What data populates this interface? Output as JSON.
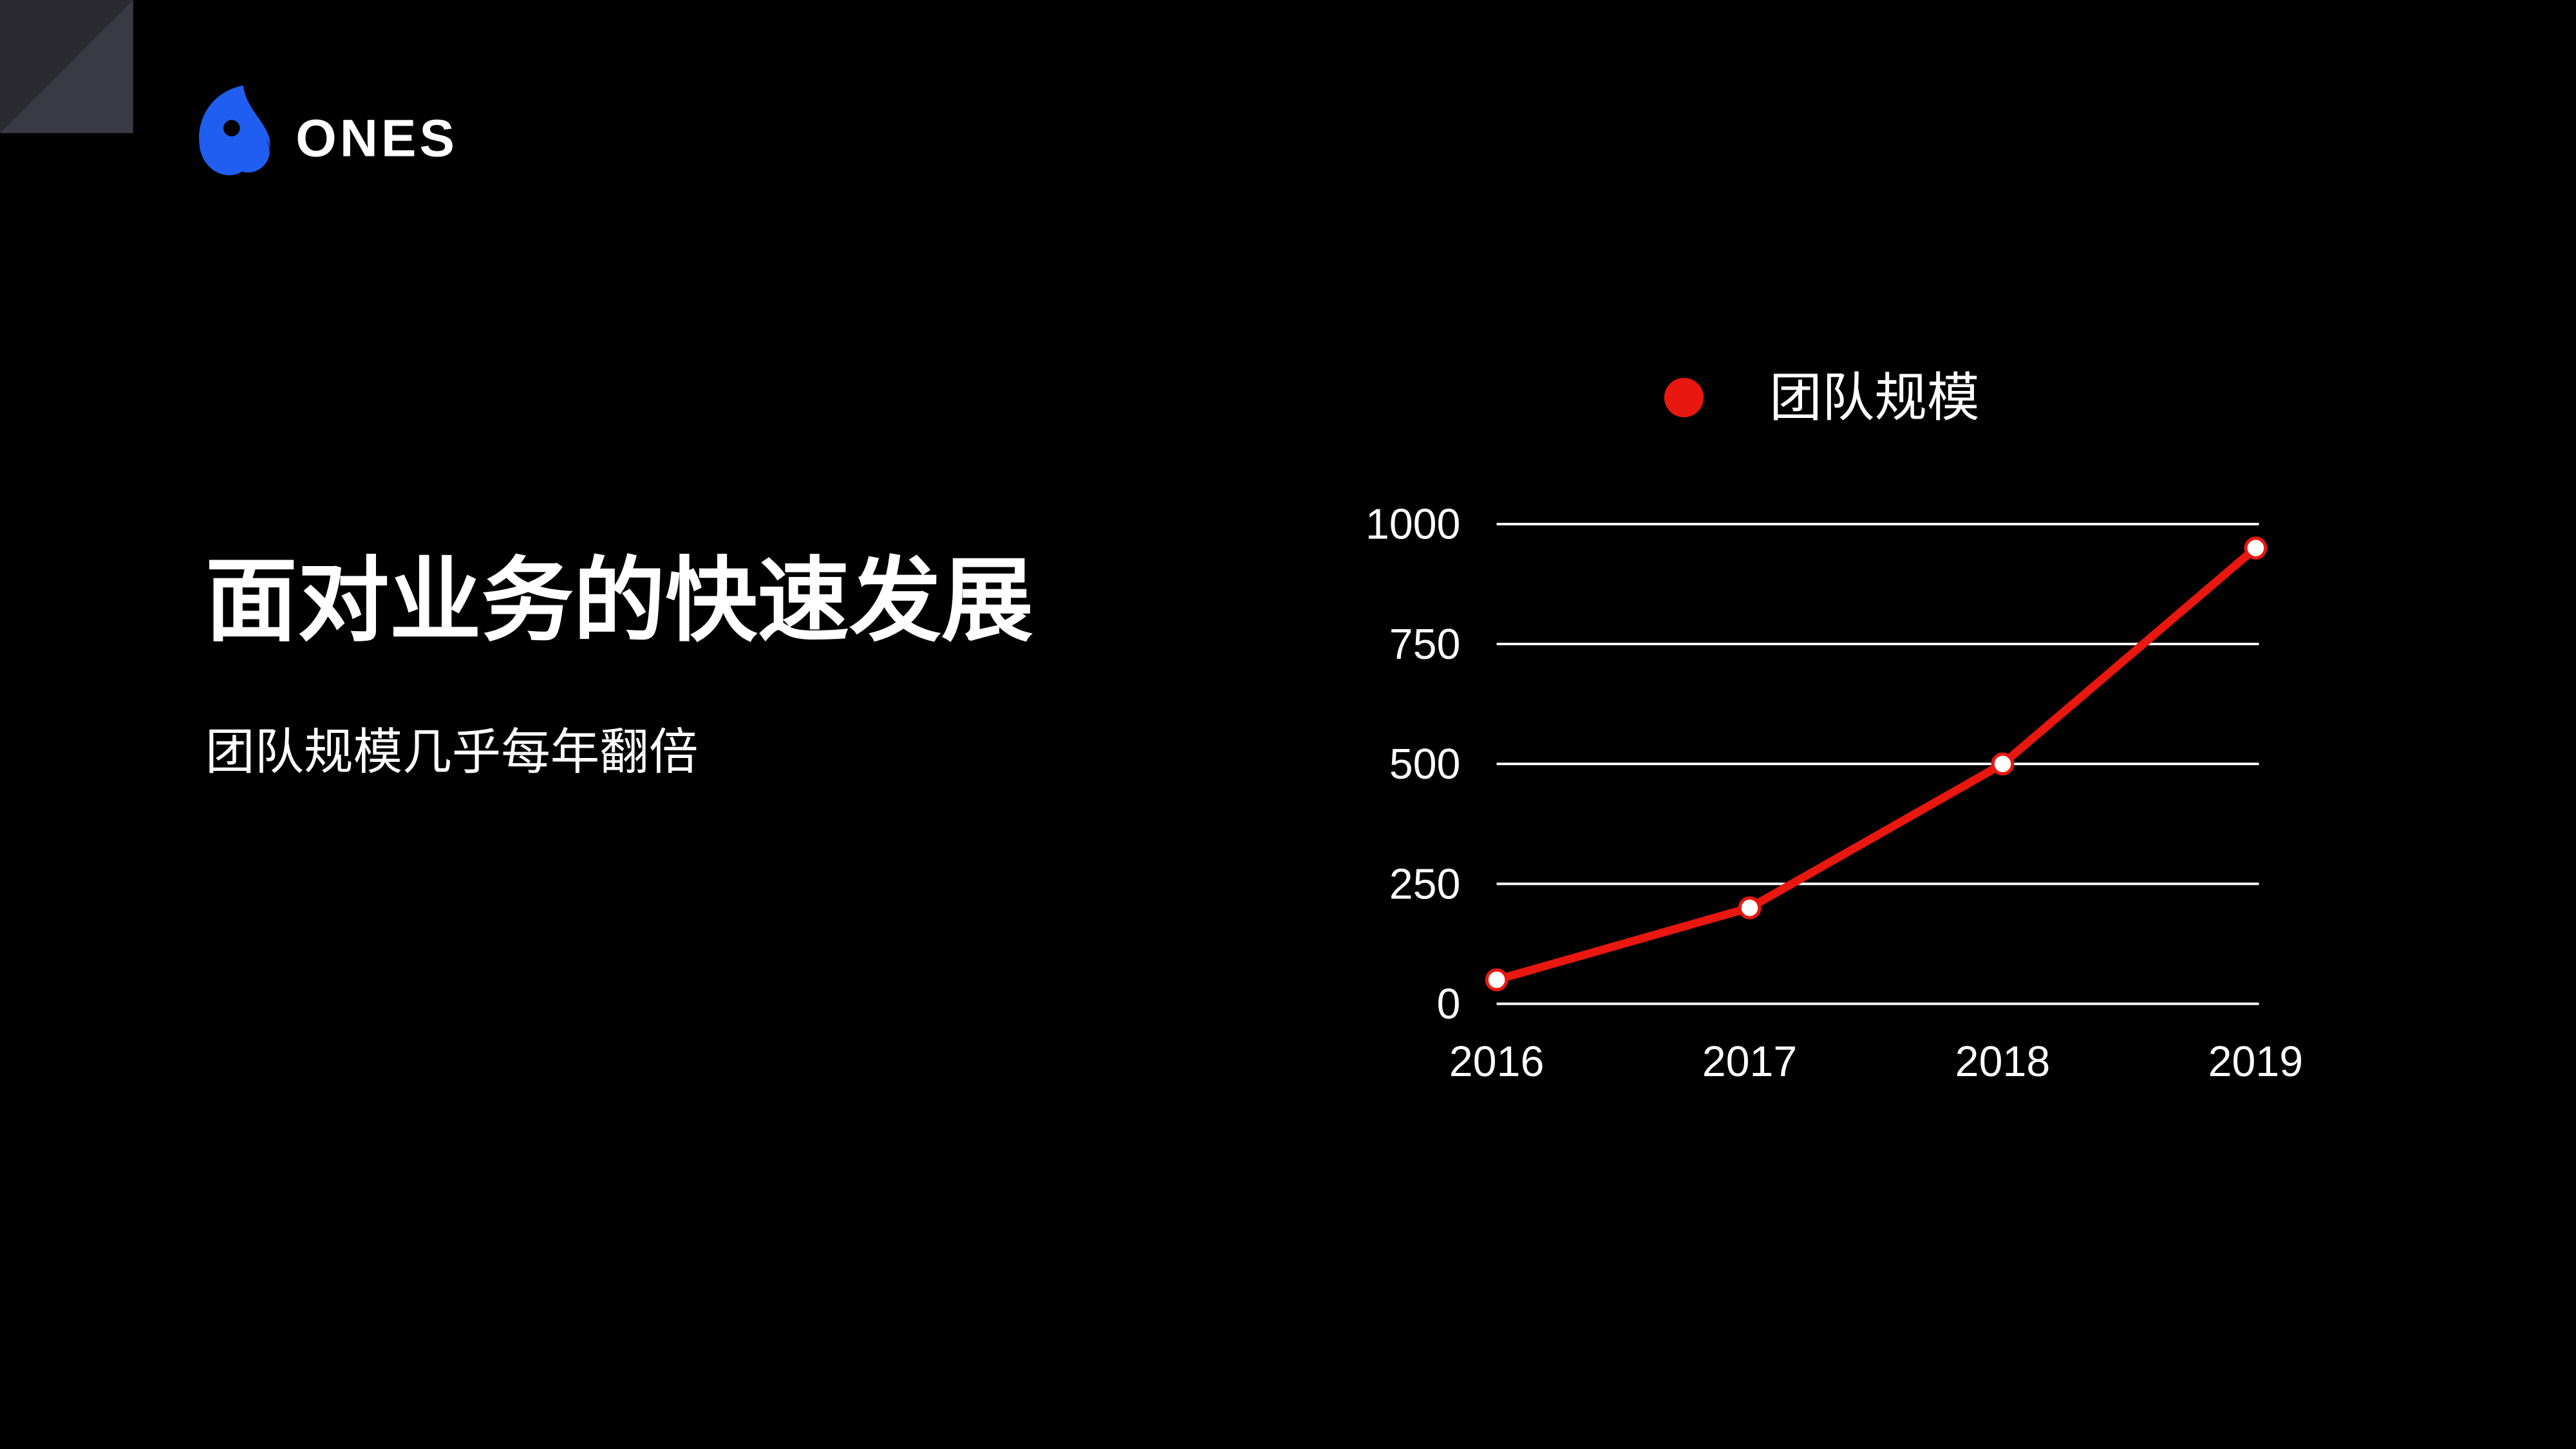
{
  "logo": "ONES",
  "title": "面对业务的快速发展",
  "subtitle": "团队规模几乎每年翻倍",
  "chart_data": {
    "type": "line",
    "categories": [
      "2016",
      "2017",
      "2018",
      "2019"
    ],
    "series": [
      {
        "name": "团队规模",
        "color": "#e8170f",
        "values": [
          50,
          200,
          500,
          950
        ]
      }
    ],
    "ylim": [
      0,
      1000
    ],
    "yticks": [
      0,
      250,
      500,
      750,
      1000
    ],
    "grid": true,
    "legend": "top"
  }
}
